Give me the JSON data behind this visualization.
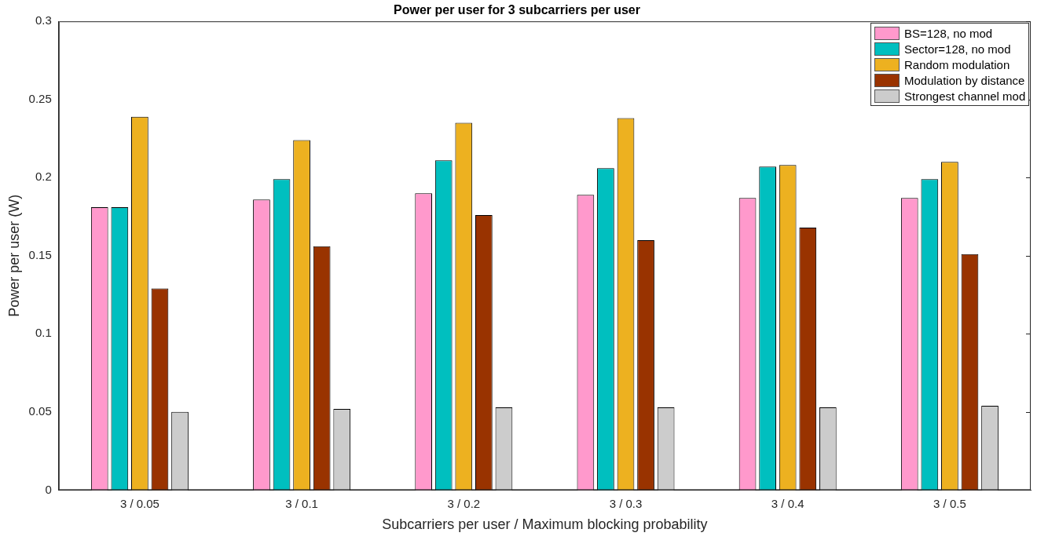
{
  "chart_data": {
    "type": "bar",
    "title": "Power per user for 3 subcarriers per user",
    "xlabel": "Subcarriers per user / Maximum blocking probability",
    "ylabel": "Power per user (W)",
    "categories": [
      "3 / 0.05",
      "3 / 0.1",
      "3 / 0.2",
      "3 / 0.3",
      "3 / 0.4",
      "3 / 0.5"
    ],
    "series": [
      {
        "name": "BS=128, no mod",
        "color": "#ff99cc",
        "values": [
          0.181,
          0.186,
          0.19,
          0.189,
          0.187,
          0.187
        ]
      },
      {
        "name": "Sector=128, no mod",
        "color": "#00bfbf",
        "values": [
          0.181,
          0.199,
          0.211,
          0.206,
          0.207,
          0.199
        ]
      },
      {
        "name": "Random modulation",
        "color": "#edb120",
        "values": [
          0.239,
          0.224,
          0.235,
          0.238,
          0.208,
          0.21
        ]
      },
      {
        "name": "Modulation by distance",
        "color": "#993300",
        "values": [
          0.129,
          0.156,
          0.176,
          0.16,
          0.168,
          0.151
        ]
      },
      {
        "name": "Strongest channel mod",
        "color": "#cccccc",
        "values": [
          0.05,
          0.052,
          0.053,
          0.053,
          0.053,
          0.054
        ]
      }
    ],
    "ylim": [
      0,
      0.3
    ],
    "yticks": [
      0,
      0.05,
      0.1,
      0.15,
      0.2,
      0.25,
      0.3
    ],
    "grid": false,
    "legend": "top right"
  }
}
